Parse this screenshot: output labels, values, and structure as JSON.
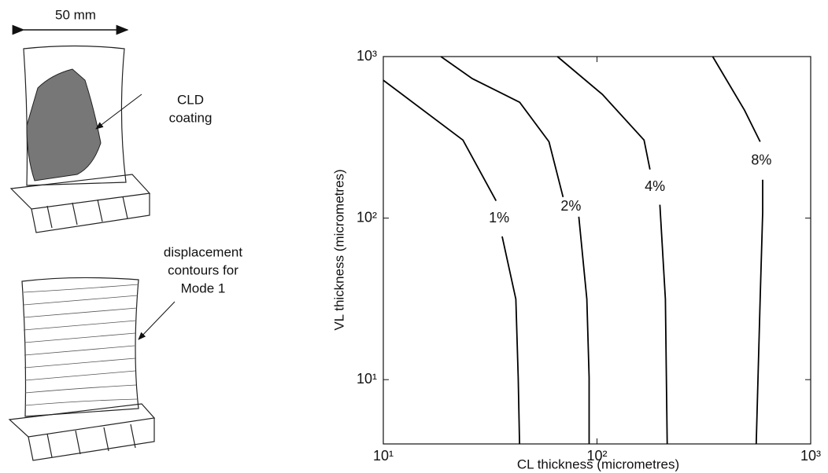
{
  "figure": {
    "scale_label": "50 mm",
    "callouts": [
      [
        "CLD",
        "coating"
      ],
      [
        "displacement",
        "contours for",
        "Mode 1"
      ]
    ]
  },
  "chart_data": {
    "type": "line",
    "xlabel": "CL thickness (micrometres)",
    "ylabel": "VL thickness (micrometres)",
    "xscale": "log",
    "yscale": "log",
    "xlim": [
      10,
      1000
    ],
    "ylim": [
      4,
      1000
    ],
    "xticks": [
      {
        "value": 10,
        "label": "10¹"
      },
      {
        "value": 100,
        "label": "10²"
      },
      {
        "value": 1000,
        "label": "10³"
      }
    ],
    "yticks": [
      {
        "value": 10,
        "label": "10¹"
      },
      {
        "value": 100,
        "label": "10²"
      },
      {
        "value": 1000,
        "label": "10³"
      }
    ],
    "series": [
      {
        "name": "1%",
        "color": "#000000",
        "x": [
          10,
          23.6,
          33.7,
          null,
          36,
          41.7,
          42.8,
          43.4
        ],
        "y": [
          714,
          304,
          128,
          null,
          77,
          31.5,
          10.3,
          4
        ]
      },
      {
        "name": "2%",
        "color": "#000000",
        "x": [
          18.6,
          26.1,
          43.5,
          59.6,
          69.4,
          null,
          82.2,
          89.6,
          91.9,
          91.9
        ],
        "y": [
          1000,
          730,
          521,
          297,
          135,
          null,
          102,
          31.5,
          10.3,
          4
        ]
      },
      {
        "name": "4%",
        "color": "#000000",
        "x": [
          65.3,
          106,
          166,
          177,
          null,
          197,
          209,
          213
        ],
        "y": [
          1000,
          583,
          304,
          200,
          null,
          121,
          31.5,
          4
        ]
      },
      {
        "name": "8%",
        "color": "#000000",
        "x": [
          348,
          490,
          580,
          null,
          596,
          596,
          580,
          556
        ],
        "y": [
          1000,
          466,
          297,
          null,
          173,
          108,
          31.5,
          4
        ]
      }
    ]
  }
}
